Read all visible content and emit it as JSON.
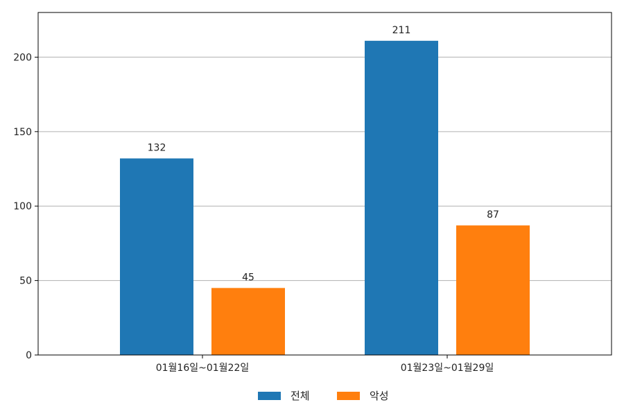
{
  "chart_data": {
    "type": "bar",
    "categories": [
      "01월16일~01월22일",
      "01월23일~01월29일"
    ],
    "series": [
      {
        "name": "전체",
        "values": [
          132,
          211
        ],
        "color": "#1f77b4"
      },
      {
        "name": "악성",
        "values": [
          45,
          87
        ],
        "color": "#ff7f0e"
      }
    ],
    "ylim": [
      0,
      230
    ],
    "yticks": [
      0,
      50,
      100,
      150,
      200
    ],
    "grid": "y",
    "legend": "bottom-center",
    "data_labels": true
  }
}
